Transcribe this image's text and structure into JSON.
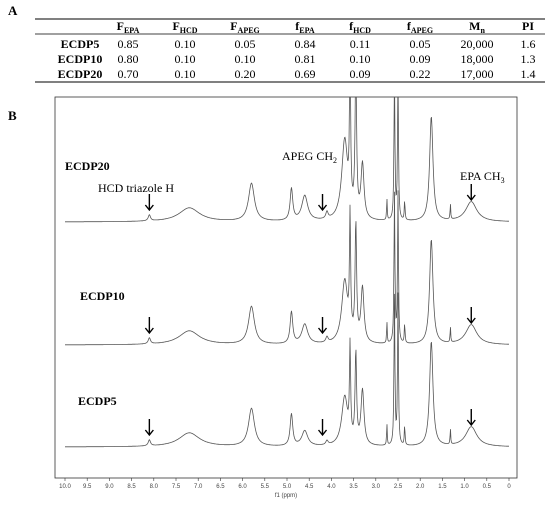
{
  "panel_labels": [
    "A",
    "B"
  ],
  "table": {
    "columns": [
      {
        "main": "F",
        "sub": "EPA"
      },
      {
        "main": "F",
        "sub": "HCD"
      },
      {
        "main": "F",
        "sub": "APEG"
      },
      {
        "main": "f",
        "sub": "EPA"
      },
      {
        "main": "f",
        "sub": "HCD"
      },
      {
        "main": "f",
        "sub": "APEG"
      },
      {
        "main": "M",
        "sub": "n"
      },
      {
        "main": "PI"
      }
    ],
    "rows": [
      [
        "ECDP5",
        "0.85",
        "0.10",
        "0.05",
        "0.84",
        "0.11",
        "0.05",
        "20,000",
        "1.6"
      ],
      [
        "ECDP10",
        "0.80",
        "0.10",
        "0.10",
        "0.81",
        "0.10",
        "0.09",
        "18,000",
        "1.3"
      ],
      [
        "ECDP20",
        "0.70",
        "0.10",
        "0.20",
        "0.69",
        "0.09",
        "0.22",
        "17,000",
        "1.4"
      ]
    ]
  },
  "chart_data": {
    "type": "nmr",
    "xlabel": "f1 (ppm)",
    "xlim": [
      10,
      0
    ],
    "xticks": [
      {
        "value": 10,
        "label": "10.0"
      },
      9.5,
      {
        "value": 9,
        "label": "9.0"
      },
      8.5,
      {
        "value": 8,
        "label": "8.0"
      },
      7.5,
      {
        "value": 7,
        "label": "7.0"
      },
      6.5,
      {
        "value": 6,
        "label": "6.0"
      },
      5.5,
      {
        "value": 5,
        "label": "5.0"
      },
      4.5,
      {
        "value": 4,
        "label": "4.0"
      },
      3.5,
      {
        "value": 3,
        "label": "3.0"
      },
      2.5,
      {
        "value": 2,
        "label": "2.0"
      },
      1.5,
      {
        "value": 1,
        "label": "1.0"
      },
      0.5,
      0
    ],
    "traces": [
      "ECDP20",
      "ECDP10",
      "ECDP5"
    ],
    "annotations": [
      {
        "main": "HCD triazole H"
      },
      {
        "main": "APEG CH",
        "sub": "2"
      },
      {
        "main": "EPA CH",
        "sub": "3"
      }
    ]
  }
}
